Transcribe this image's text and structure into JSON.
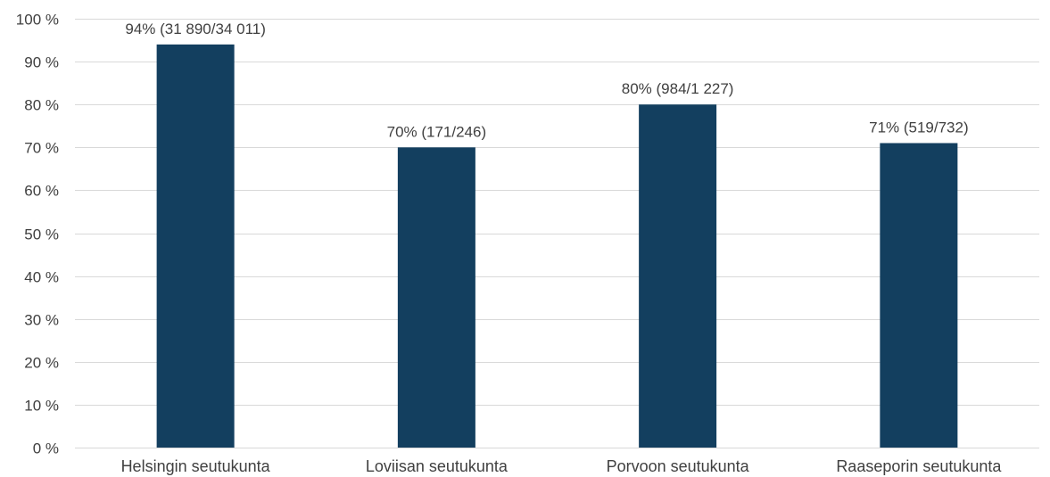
{
  "chart_data": {
    "type": "bar",
    "categories": [
      "Helsingin seutukunta",
      "Loviisan seutukunta",
      "Porvoon seutukunta",
      "Raaseporin seutukunta"
    ],
    "values": [
      94,
      70,
      80,
      71
    ],
    "data_labels": [
      "94% (31 890/34 011)",
      "70% (171/246)",
      "80% (984/1 227)",
      "71% (519/732)"
    ],
    "ylim": [
      0,
      100
    ],
    "y_ticks": [
      0,
      10,
      20,
      30,
      40,
      50,
      60,
      70,
      80,
      90,
      100
    ],
    "y_tick_labels": [
      "0 %",
      "10 %",
      "20 %",
      "30 %",
      "40 %",
      "50 %",
      "60 %",
      "70 %",
      "80 %",
      "90 %",
      "100 %"
    ],
    "title": "",
    "xlabel": "",
    "ylabel": "",
    "grid": true,
    "legend": "none",
    "bar_color": "#133f5f",
    "grid_color": "#d9d9d9",
    "text_color": "#404040"
  }
}
